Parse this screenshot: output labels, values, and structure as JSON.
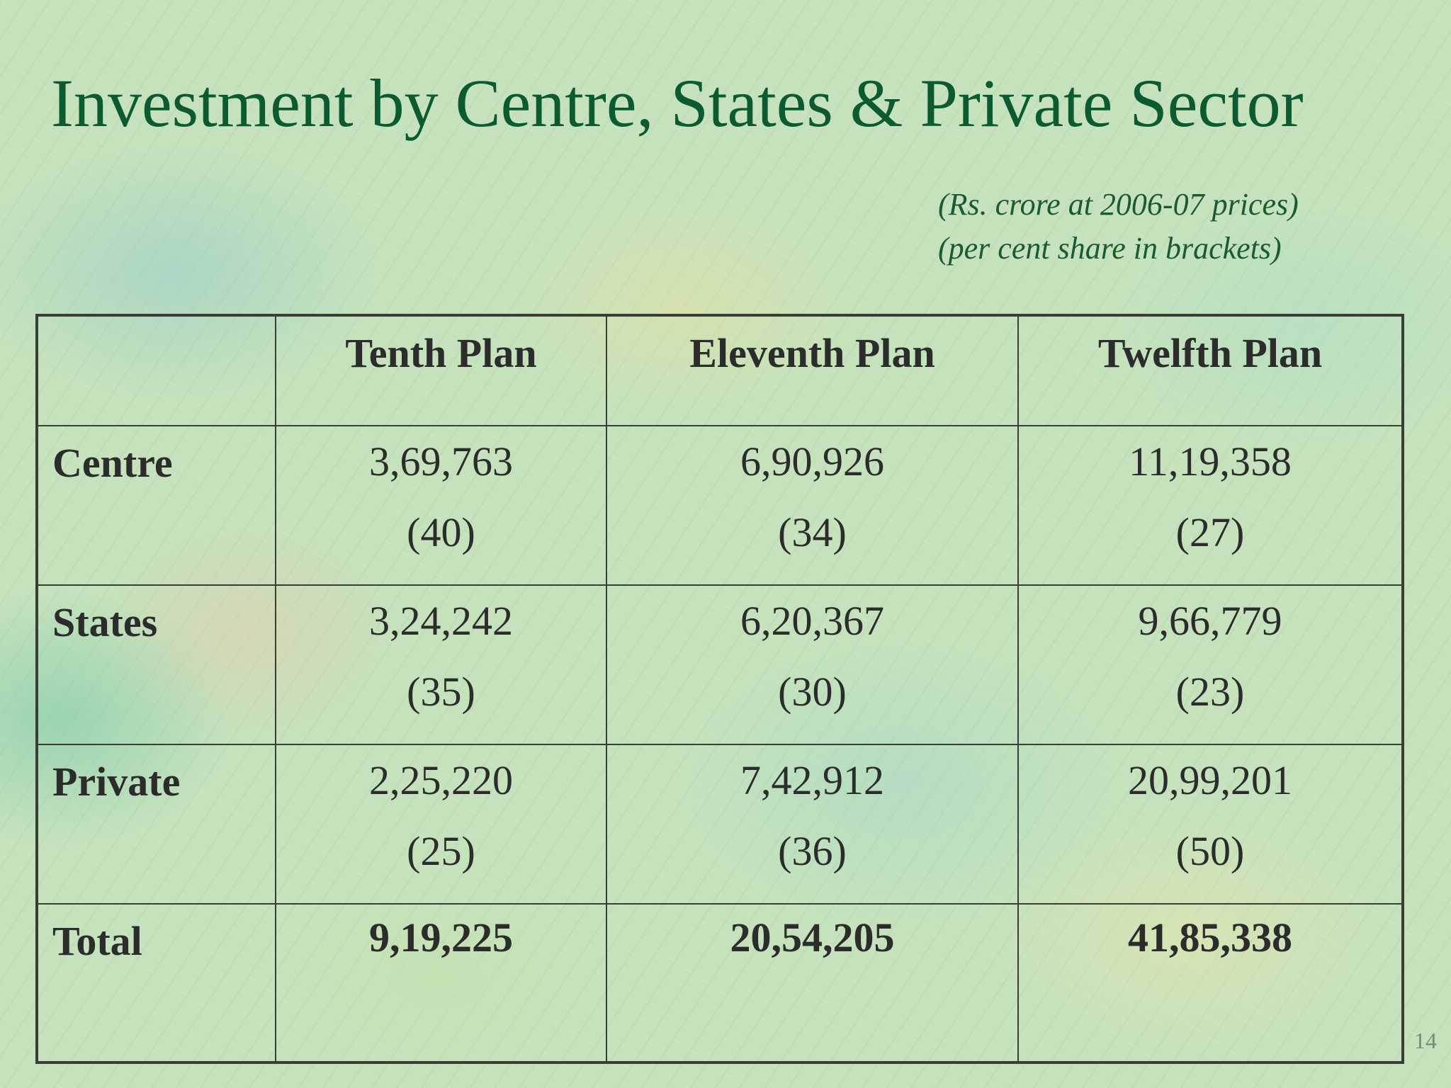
{
  "slide": {
    "title": "Investment by Centre, States & Private Sector",
    "note_line1": "(Rs. crore at 2006-07 prices)",
    "note_line2": "(per cent share in brackets)",
    "page_number": "14"
  },
  "table": {
    "headers": [
      "",
      "Tenth Plan",
      "Eleventh Plan",
      "Twelfth Plan"
    ],
    "rows": [
      {
        "label": "Centre",
        "cells": [
          {
            "value": "3,69,763",
            "share": "(40)"
          },
          {
            "value": "6,90,926",
            "share": "(34)"
          },
          {
            "value": "11,19,358",
            "share": "(27)"
          }
        ]
      },
      {
        "label": "States",
        "cells": [
          {
            "value": "3,24,242",
            "share": "(35)"
          },
          {
            "value": "6,20,367",
            "share": "(30)"
          },
          {
            "value": "9,66,779",
            "share": "(23)"
          }
        ]
      },
      {
        "label": "Private",
        "cells": [
          {
            "value": "2,25,220",
            "share": "(25)"
          },
          {
            "value": "7,42,912",
            "share": "(36)"
          },
          {
            "value": "20,99,201",
            "share": "(50)"
          }
        ]
      }
    ],
    "total": {
      "label": "Total",
      "cells": [
        "9,19,225",
        "20,54,205",
        "41,85,338"
      ]
    }
  },
  "colors": {
    "title": "#0b5a32",
    "text": "#2c2c2c",
    "border": "#3a3d38",
    "background": "#c5e2bc"
  }
}
